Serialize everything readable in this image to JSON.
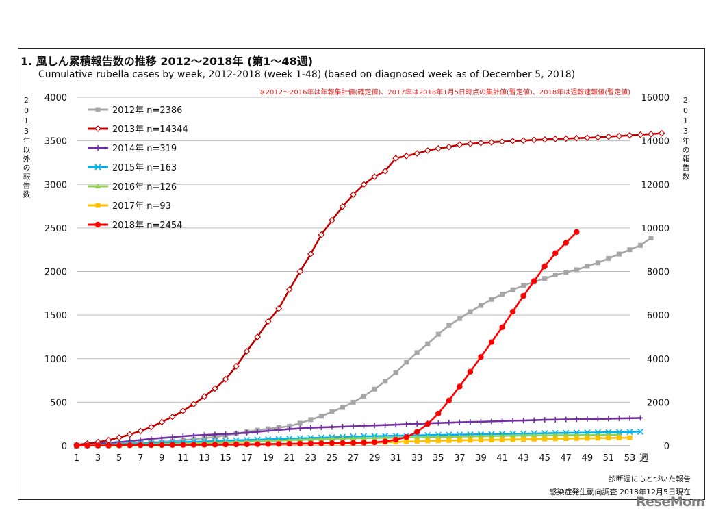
{
  "header": {
    "title": "1. 風しん累積報告数の推移  2012〜2018年 (第1〜48週)",
    "subtitle": "Cumulative rubella cases by week, 2012-2018 (week 1-48)  (based on diagnosed week as of December 5, 2018)",
    "note": "※2012〜2016年は年報集計値(確定値)、2017年は2018年1月5日時点の集計値(暫定値)、2018年は週報速報値(暫定値)"
  },
  "axis_labels": {
    "left": "2013年以外の報告数",
    "right": "2013年の報告数",
    "x_unit": "週"
  },
  "footer": {
    "line1": "診断週にもとづいた報告",
    "line2": "感染症発生動向調査 2018年12月5日現在",
    "logo": "ReseMom"
  },
  "chart_data": {
    "type": "line",
    "x_range": [
      1,
      53
    ],
    "x_ticks": [
      1,
      3,
      5,
      7,
      9,
      11,
      13,
      15,
      17,
      19,
      21,
      23,
      25,
      27,
      29,
      31,
      33,
      35,
      37,
      39,
      41,
      43,
      45,
      47,
      49,
      51,
      53
    ],
    "y_left_range": [
      0,
      4000
    ],
    "y_left_ticks": [
      0,
      500,
      1000,
      1500,
      2000,
      2500,
      3000,
      3500,
      4000
    ],
    "y_right_range": [
      0,
      16000
    ],
    "y_right_ticks": [
      0,
      2000,
      4000,
      6000,
      8000,
      10000,
      12000,
      14000,
      16000
    ],
    "grid": "horizontal",
    "legend_position": "top-left",
    "series": [
      {
        "name": "2012年 n=2386",
        "color": "#a6a6a6",
        "marker": "square",
        "axis": "left",
        "values": [
          5,
          10,
          15,
          20,
          25,
          30,
          35,
          40,
          45,
          55,
          65,
          75,
          90,
          100,
          120,
          140,
          160,
          180,
          195,
          210,
          225,
          260,
          300,
          340,
          390,
          440,
          500,
          570,
          650,
          740,
          840,
          960,
          1070,
          1170,
          1280,
          1380,
          1460,
          1540,
          1610,
          1680,
          1740,
          1790,
          1840,
          1880,
          1920,
          1960,
          1990,
          2020,
          2060,
          2100,
          2150,
          2200,
          2250,
          2300,
          2386
        ]
      },
      {
        "name": "2013年 n=14344",
        "color": "#c00000",
        "marker": "diamond",
        "axis": "right",
        "values": [
          40,
          100,
          170,
          260,
          380,
          520,
          680,
          860,
          1090,
          1330,
          1600,
          1910,
          2260,
          2630,
          3060,
          3650,
          4340,
          5000,
          5710,
          6300,
          7170,
          8000,
          8800,
          9690,
          10350,
          10980,
          11530,
          12000,
          12350,
          12610,
          13200,
          13300,
          13420,
          13550,
          13650,
          13720,
          13820,
          13860,
          13900,
          13930,
          13960,
          13990,
          14010,
          14040,
          14060,
          14090,
          14100,
          14120,
          14140,
          14160,
          14190,
          14220,
          14250,
          14280,
          14310,
          14344
        ]
      },
      {
        "name": "2014年 n=319",
        "color": "#7030a0",
        "marker": "plus",
        "axis": "left",
        "values": [
          10,
          18,
          26,
          34,
          42,
          54,
          66,
          80,
          90,
          100,
          110,
          118,
          124,
          130,
          136,
          142,
          150,
          160,
          172,
          182,
          192,
          200,
          208,
          212,
          216,
          220,
          224,
          230,
          234,
          238,
          242,
          248,
          252,
          258,
          262,
          266,
          270,
          274,
          276,
          280,
          284,
          288,
          290,
          294,
          298,
          300,
          302,
          304,
          306,
          308,
          310,
          314,
          316,
          319
        ]
      },
      {
        "name": "2015年 n=163",
        "color": "#00b0f0",
        "marker": "x",
        "axis": "left",
        "values": [
          3,
          6,
          10,
          14,
          18,
          22,
          26,
          30,
          35,
          38,
          42,
          46,
          50,
          54,
          58,
          62,
          66,
          70,
          74,
          78,
          82,
          86,
          90,
          94,
          98,
          102,
          106,
          110,
          112,
          114,
          116,
          118,
          120,
          122,
          124,
          126,
          128,
          130,
          132,
          134,
          136,
          138,
          140,
          142,
          144,
          146,
          148,
          150,
          152,
          154,
          156,
          158,
          160,
          163
        ]
      },
      {
        "name": "2016年 n=126",
        "color": "#92d050",
        "marker": "triangle",
        "axis": "left",
        "values": [
          2,
          4,
          7,
          10,
          12,
          14,
          16,
          18,
          20,
          22,
          24,
          28,
          32,
          36,
          40,
          44,
          48,
          52,
          56,
          60,
          64,
          68,
          72,
          76,
          80,
          84,
          86,
          88,
          90,
          92,
          94,
          96,
          98,
          100,
          102,
          104,
          106,
          108,
          110,
          112,
          114,
          116,
          118,
          119,
          120,
          121,
          122,
          123,
          124,
          125,
          126,
          126
        ]
      },
      {
        "name": "2017年 n=93",
        "color": "#ffc000",
        "marker": "square",
        "axis": "left",
        "values": [
          1,
          2,
          3,
          4,
          5,
          6,
          7,
          8,
          9,
          10,
          11,
          12,
          13,
          14,
          15,
          16,
          17,
          18,
          19,
          20,
          21,
          22,
          23,
          24,
          25,
          27,
          30,
          33,
          36,
          40,
          44,
          48,
          52,
          56,
          58,
          60,
          62,
          64,
          66,
          68,
          70,
          72,
          74,
          76,
          78,
          80,
          82,
          84,
          86,
          88,
          90,
          92,
          93
        ]
      },
      {
        "name": "2018年 n=2454",
        "color": "#ff0000",
        "marker": "circle",
        "axis": "left",
        "values": [
          1,
          2,
          3,
          4,
          5,
          6,
          7,
          8,
          9,
          10,
          11,
          12,
          13,
          14,
          15,
          16,
          17,
          18,
          19,
          20,
          22,
          24,
          26,
          28,
          30,
          32,
          34,
          36,
          40,
          50,
          70,
          100,
          160,
          250,
          370,
          520,
          680,
          850,
          1020,
          1190,
          1360,
          1540,
          1720,
          1890,
          2060,
          2210,
          2330,
          2454
        ]
      }
    ]
  }
}
